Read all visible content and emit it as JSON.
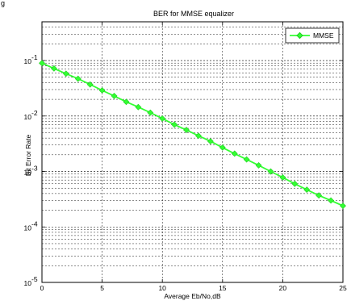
{
  "figure": {
    "top_left_text": "g"
  },
  "chart_data": {
    "type": "line",
    "title": "BER for MMSE equalizer",
    "xlabel": "Average Eb/No,dB",
    "ylabel": "Bit Error Rate",
    "x_scale": "linear",
    "y_scale": "log",
    "xlim": [
      0,
      25
    ],
    "ylim": [
      1e-05,
      0.5
    ],
    "x_ticks": [
      0,
      5,
      10,
      15,
      20,
      25
    ],
    "x_tick_labels": [
      "0",
      "5",
      "10",
      "15",
      "20",
      "25"
    ],
    "y_ticks": [
      1e-05,
      0.0001,
      0.001,
      0.01,
      0.1
    ],
    "y_tick_labels": [
      {
        "base": "10",
        "exp": "-5"
      },
      {
        "base": "10",
        "exp": "-4"
      },
      {
        "base": "10",
        "exp": "-3"
      },
      {
        "base": "10",
        "exp": "-2"
      },
      {
        "base": "10",
        "exp": "-1"
      }
    ],
    "grid": true,
    "legend_position": "top-right",
    "series": [
      {
        "name": "MMSE",
        "color": "#33ff33",
        "marker": "diamond",
        "x": [
          0,
          1,
          2,
          3,
          4,
          5,
          6,
          7,
          8,
          9,
          10,
          11,
          12,
          13,
          14,
          15,
          16,
          17,
          18,
          19,
          20,
          21,
          22,
          23,
          24,
          25
        ],
        "y": [
          0.09,
          0.072,
          0.058,
          0.047,
          0.037,
          0.029,
          0.023,
          0.018,
          0.0145,
          0.0115,
          0.009,
          0.007,
          0.0056,
          0.0044,
          0.0035,
          0.0027,
          0.0021,
          0.00165,
          0.00129,
          0.001,
          0.00078,
          0.0006,
          0.00047,
          0.00037,
          0.0003,
          0.00024
        ]
      }
    ]
  }
}
